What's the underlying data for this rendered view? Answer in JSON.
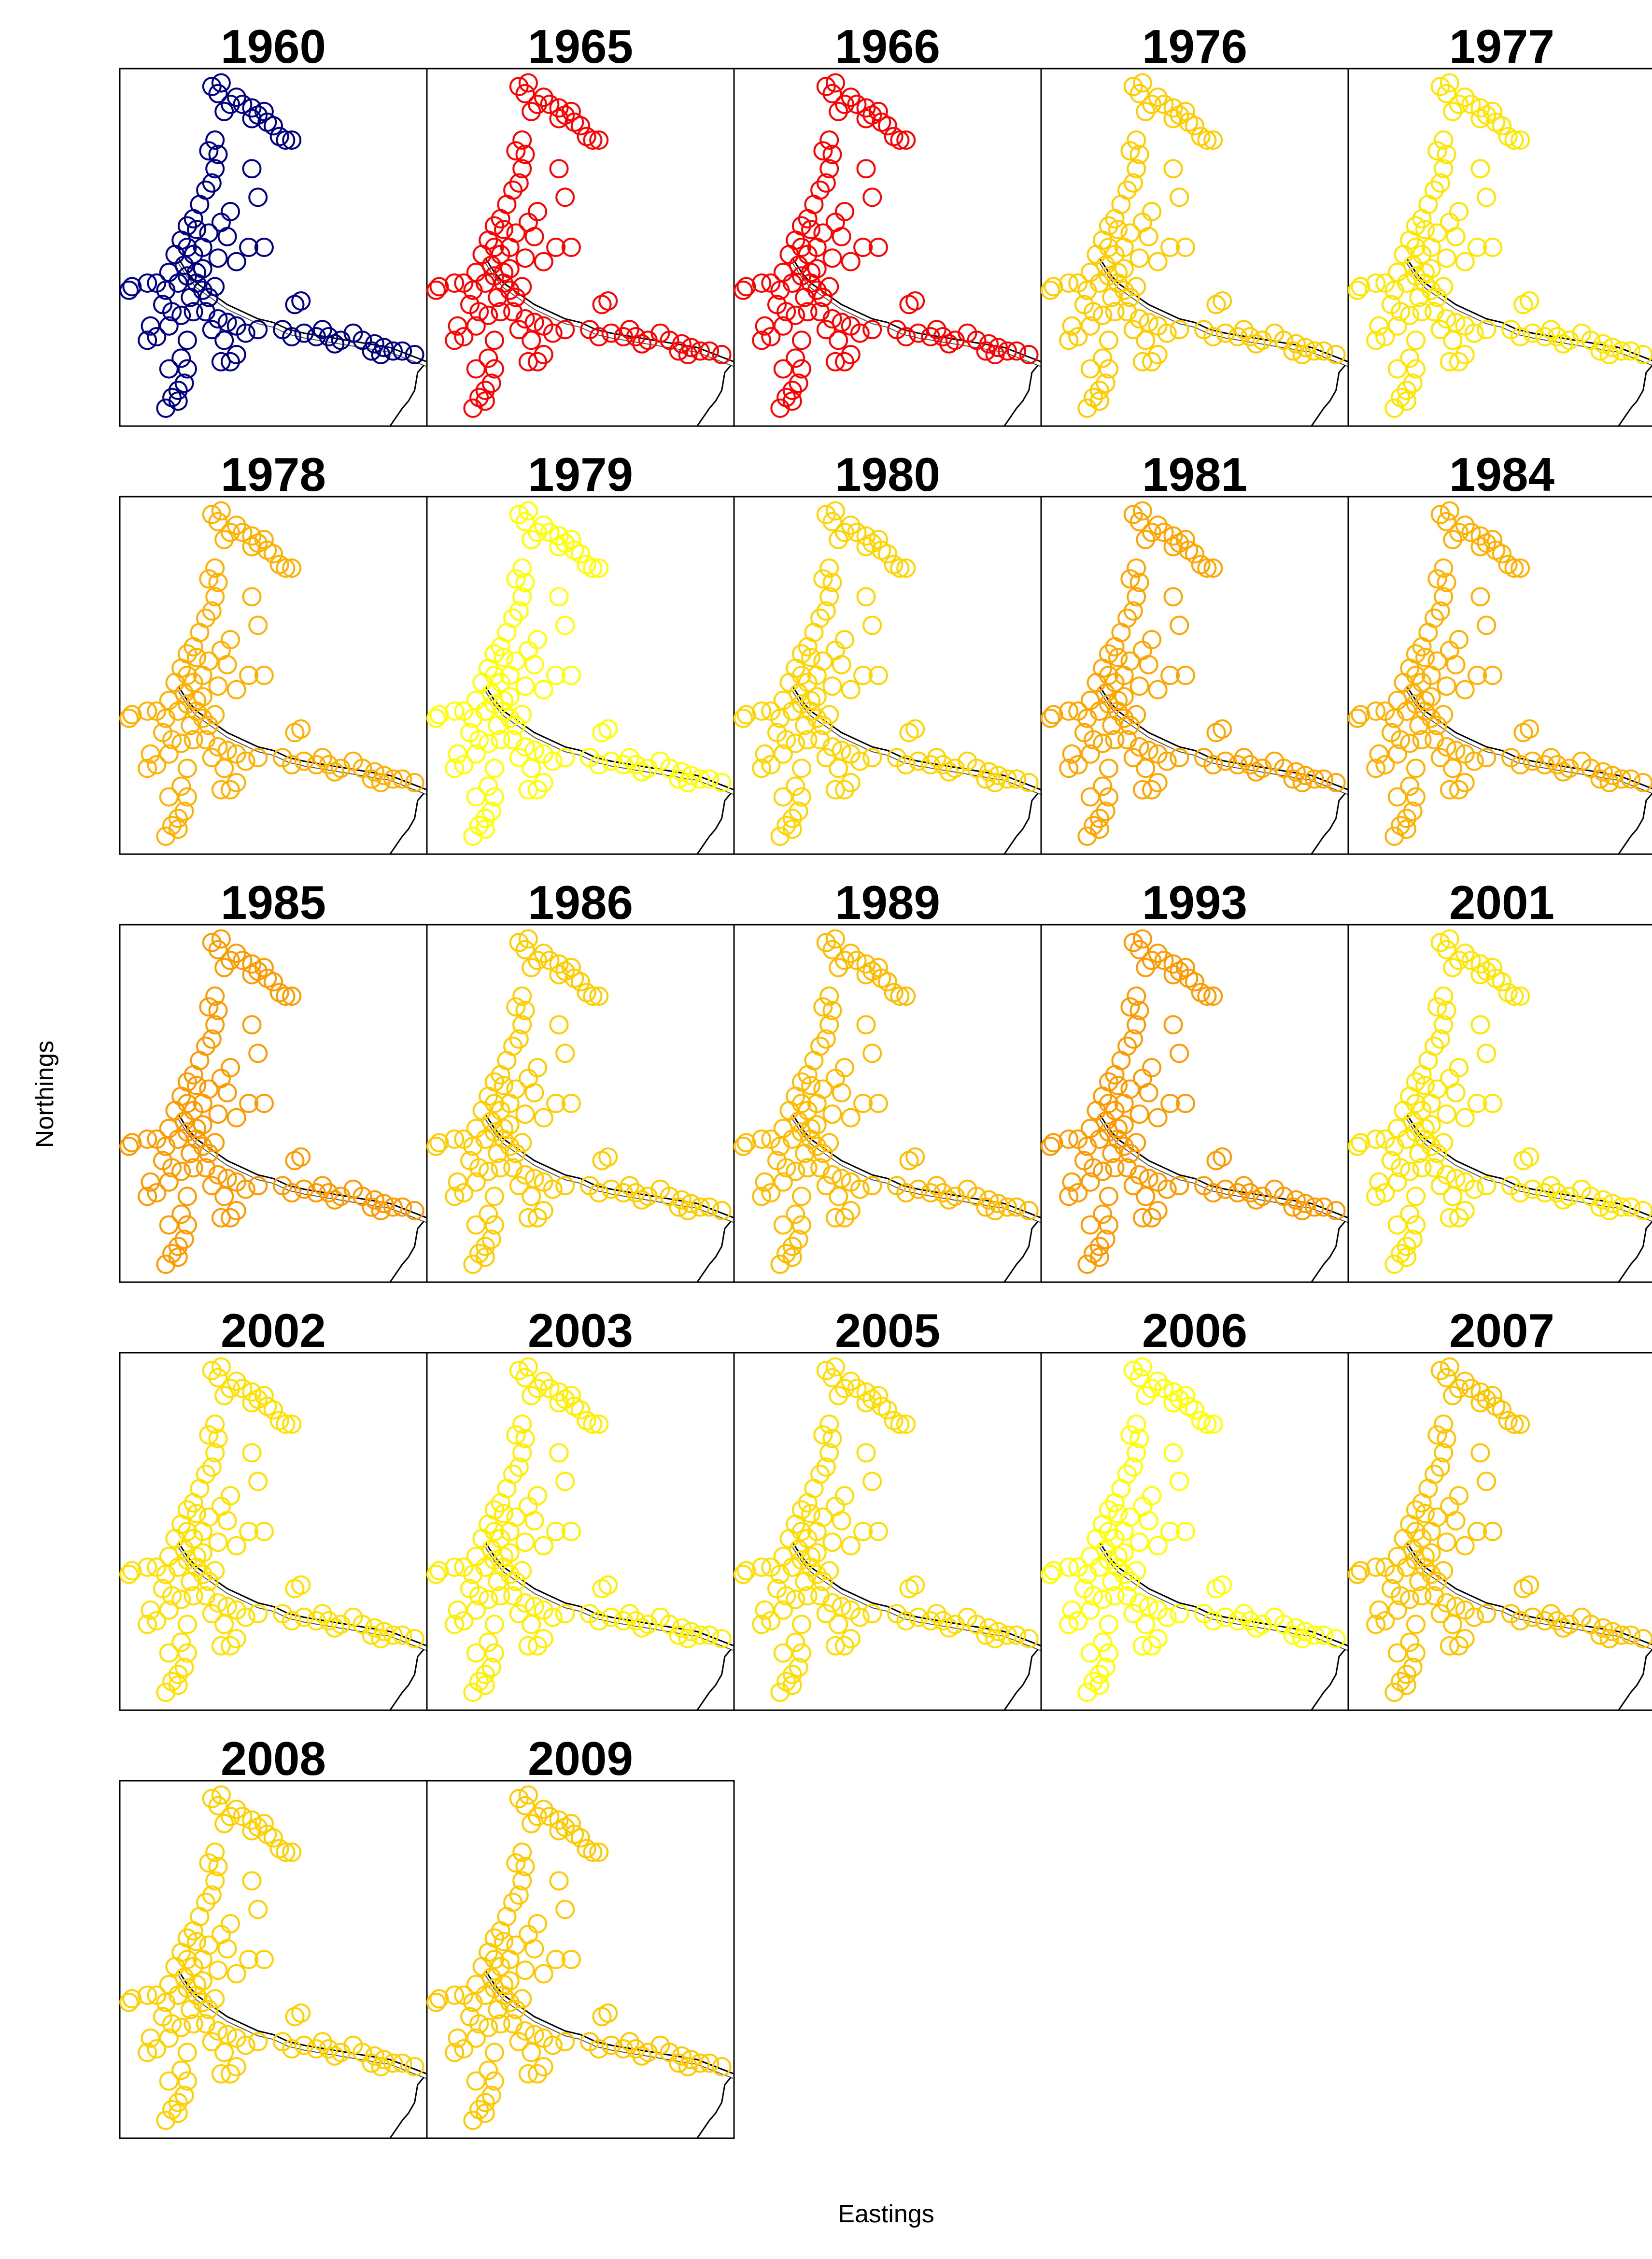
{
  "chart_data": {
    "type": "scatter",
    "layout": "small-multiples",
    "xlabel": "Eastings",
    "ylabel": "Northings",
    "marker": "open-circle",
    "colors": {
      "dark_blue": "#000080",
      "red": "#ff0000",
      "orange": "#ff9900",
      "orange_light": "#ffb000",
      "gold": "#ffcc00",
      "yellow": "#ffe600",
      "yellow_bright": "#ffff00"
    },
    "shared_points": [
      [
        0.3,
        0.05
      ],
      [
        0.33,
        0.04
      ],
      [
        0.32,
        0.07
      ],
      [
        0.36,
        0.1
      ],
      [
        0.34,
        0.12
      ],
      [
        0.4,
        0.1
      ],
      [
        0.43,
        0.11
      ],
      [
        0.45,
        0.13
      ],
      [
        0.47,
        0.12
      ],
      [
        0.48,
        0.15
      ],
      [
        0.5,
        0.16
      ],
      [
        0.52,
        0.19
      ],
      [
        0.54,
        0.2
      ],
      [
        0.56,
        0.2
      ],
      [
        0.43,
        0.14
      ],
      [
        0.38,
        0.08
      ],
      [
        0.31,
        0.2
      ],
      [
        0.29,
        0.23
      ],
      [
        0.32,
        0.24
      ],
      [
        0.31,
        0.28
      ],
      [
        0.3,
        0.32
      ],
      [
        0.28,
        0.34
      ],
      [
        0.26,
        0.38
      ],
      [
        0.24,
        0.42
      ],
      [
        0.25,
        0.45
      ],
      [
        0.22,
        0.44
      ],
      [
        0.2,
        0.48
      ],
      [
        0.22,
        0.5
      ],
      [
        0.18,
        0.52
      ],
      [
        0.21,
        0.55
      ],
      [
        0.24,
        0.52
      ],
      [
        0.27,
        0.5
      ],
      [
        0.29,
        0.46
      ],
      [
        0.33,
        0.43
      ],
      [
        0.36,
        0.4
      ],
      [
        0.43,
        0.28
      ],
      [
        0.45,
        0.36
      ],
      [
        0.42,
        0.5
      ],
      [
        0.47,
        0.5
      ],
      [
        0.16,
        0.57
      ],
      [
        0.19,
        0.6
      ],
      [
        0.22,
        0.58
      ],
      [
        0.25,
        0.57
      ],
      [
        0.15,
        0.62
      ],
      [
        0.12,
        0.6
      ],
      [
        0.04,
        0.61
      ],
      [
        0.09,
        0.6
      ],
      [
        0.03,
        0.62
      ],
      [
        0.14,
        0.66
      ],
      [
        0.17,
        0.68
      ],
      [
        0.2,
        0.69
      ],
      [
        0.24,
        0.68
      ],
      [
        0.28,
        0.68
      ],
      [
        0.32,
        0.7
      ],
      [
        0.35,
        0.71
      ],
      [
        0.38,
        0.72
      ],
      [
        0.41,
        0.74
      ],
      [
        0.45,
        0.73
      ],
      [
        0.57,
        0.66
      ],
      [
        0.59,
        0.65
      ],
      [
        0.53,
        0.73
      ],
      [
        0.56,
        0.75
      ],
      [
        0.6,
        0.74
      ],
      [
        0.64,
        0.75
      ],
      [
        0.68,
        0.75
      ],
      [
        0.72,
        0.76
      ],
      [
        0.76,
        0.74
      ],
      [
        0.79,
        0.76
      ],
      [
        0.83,
        0.77
      ],
      [
        0.86,
        0.78
      ],
      [
        0.89,
        0.79
      ],
      [
        0.92,
        0.79
      ],
      [
        0.96,
        0.8
      ],
      [
        0.85,
        0.8
      ],
      [
        0.82,
        0.79
      ],
      [
        0.7,
        0.77
      ],
      [
        0.66,
        0.73
      ],
      [
        0.09,
        0.76
      ],
      [
        0.12,
        0.75
      ],
      [
        0.16,
        0.72
      ],
      [
        0.22,
        0.76
      ],
      [
        0.3,
        0.73
      ],
      [
        0.34,
        0.76
      ],
      [
        0.38,
        0.8
      ],
      [
        0.2,
        0.81
      ],
      [
        0.16,
        0.84
      ],
      [
        0.22,
        0.84
      ],
      [
        0.33,
        0.82
      ],
      [
        0.36,
        0.82
      ],
      [
        0.19,
        0.9
      ],
      [
        0.17,
        0.92
      ],
      [
        0.19,
        0.93
      ],
      [
        0.15,
        0.95
      ],
      [
        0.21,
        0.88
      ],
      [
        0.1,
        0.72
      ],
      [
        0.27,
        0.62
      ],
      [
        0.29,
        0.64
      ],
      [
        0.31,
        0.61
      ],
      [
        0.23,
        0.64
      ],
      [
        0.25,
        0.6
      ],
      [
        0.27,
        0.56
      ],
      [
        0.35,
        0.47
      ],
      [
        0.32,
        0.53
      ],
      [
        0.38,
        0.54
      ]
    ],
    "panels": [
      {
        "year": "1960",
        "color": "#000080"
      },
      {
        "year": "1965",
        "color": "#ff0000"
      },
      {
        "year": "1966",
        "color": "#ff0000"
      },
      {
        "year": "1976",
        "color": "#ffcc00"
      },
      {
        "year": "1977",
        "color": "#ffe600"
      },
      {
        "year": "1978",
        "color": "#ffb000"
      },
      {
        "year": "1979",
        "color": "#ffff00"
      },
      {
        "year": "1980",
        "color": "#ffd400"
      },
      {
        "year": "1981",
        "color": "#ffa500"
      },
      {
        "year": "1984",
        "color": "#ffb000"
      },
      {
        "year": "1985",
        "color": "#ff9900"
      },
      {
        "year": "1986",
        "color": "#ffcc00"
      },
      {
        "year": "1989",
        "color": "#ffbb00"
      },
      {
        "year": "1993",
        "color": "#ff9900"
      },
      {
        "year": "2001",
        "color": "#ffe600"
      },
      {
        "year": "2002",
        "color": "#ffe000"
      },
      {
        "year": "2003",
        "color": "#ffee00"
      },
      {
        "year": "2005",
        "color": "#ffdd00"
      },
      {
        "year": "2006",
        "color": "#ffff00"
      },
      {
        "year": "2007",
        "color": "#ffc400"
      },
      {
        "year": "2008",
        "color": "#ffd000"
      },
      {
        "year": "2009",
        "color": "#ffc800"
      }
    ]
  }
}
